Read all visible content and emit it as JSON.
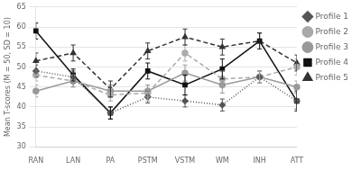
{
  "chart_data": {
    "type": "line",
    "categories": [
      "RAN",
      "LAN",
      "PA",
      "PSTM",
      "VSTM",
      "WM",
      "INH",
      "ATT"
    ],
    "series": [
      {
        "name": "Profile 1",
        "color": "#555555",
        "line_style": "dotted",
        "marker": "diamond",
        "values": [
          49.0,
          47.5,
          38.5,
          42.5,
          41.5,
          40.5,
          47.5,
          41.5
        ],
        "errors": [
          1.5,
          1.5,
          1.5,
          1.5,
          1.5,
          1.5,
          1.5,
          2.0
        ]
      },
      {
        "name": "Profile 2",
        "color": "#aaaaaa",
        "line_style": "dashed",
        "marker": "circle",
        "values": [
          48.0,
          46.5,
          43.0,
          43.5,
          53.5,
          47.0,
          47.5,
          50.0
        ],
        "errors": [
          1.5,
          1.5,
          1.5,
          2.0,
          2.0,
          2.0,
          1.5,
          2.0
        ]
      },
      {
        "name": "Profile 3",
        "color": "#999999",
        "line_style": "solid",
        "marker": "circle",
        "values": [
          44.0,
          46.5,
          44.0,
          44.0,
          48.5,
          45.5,
          47.5,
          45.0
        ],
        "errors": [
          1.5,
          1.5,
          1.5,
          1.5,
          2.0,
          2.0,
          1.5,
          1.5
        ]
      },
      {
        "name": "Profile 4",
        "color": "#111111",
        "line_style": "solid",
        "marker": "square",
        "values": [
          59.0,
          48.0,
          38.5,
          49.0,
          45.5,
          49.5,
          56.5,
          41.5
        ],
        "errors": [
          2.0,
          1.5,
          1.5,
          2.0,
          2.5,
          2.5,
          2.0,
          2.5
        ]
      },
      {
        "name": "Profile 5",
        "color": "#333333",
        "line_style": "dashed",
        "marker": "triangle",
        "values": [
          51.5,
          53.5,
          44.5,
          54.0,
          57.5,
          55.0,
          56.5,
          51.0
        ],
        "errors": [
          2.0,
          2.0,
          2.0,
          2.0,
          2.0,
          2.0,
          2.0,
          2.0
        ]
      }
    ],
    "ylabel": "Mean T-scores (M = 50, SD = 10)",
    "ylim": [
      30,
      65
    ],
    "yticks": [
      30,
      35,
      40,
      45,
      50,
      55,
      60,
      65
    ],
    "grid": true,
    "legend": "right"
  }
}
